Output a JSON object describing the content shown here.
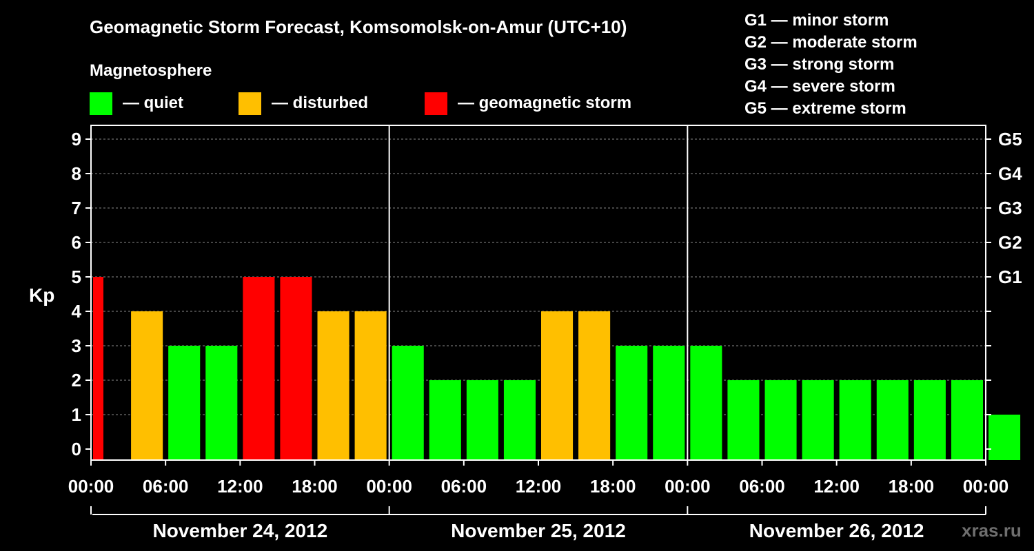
{
  "title": "Geomagnetic Storm Forecast, Komsomolsk-on-Amur (UTC+10)",
  "legend": {
    "heading": "Magnetosphere",
    "items": [
      {
        "label": "— quiet",
        "color": "#00ff00"
      },
      {
        "label": "— disturbed",
        "color": "#ffbf00"
      },
      {
        "label": "— geomagnetic storm",
        "color": "#ff0000"
      }
    ]
  },
  "storm_scale": [
    "G1 — minor storm",
    "G2 — moderate storm",
    "G3 — strong storm",
    "G4 — severe storm",
    "G5 — extreme storm"
  ],
  "watermark": "xras.ru",
  "chart_data": {
    "type": "bar",
    "ylabel": "Kp",
    "ylim": [
      0,
      9
    ],
    "y_ticks": [
      "0",
      "1",
      "2",
      "3",
      "4",
      "5",
      "6",
      "7",
      "8",
      "9"
    ],
    "right_ticks": [
      {
        "kp": 5,
        "label": "G1"
      },
      {
        "kp": 6,
        "label": "G2"
      },
      {
        "kp": 7,
        "label": "G3"
      },
      {
        "kp": 8,
        "label": "G4"
      },
      {
        "kp": 9,
        "label": "G5"
      }
    ],
    "x_ticks": [
      "00:00",
      "06:00",
      "12:00",
      "18:00",
      "00:00",
      "06:00",
      "12:00",
      "18:00",
      "00:00",
      "06:00",
      "12:00",
      "18:00",
      "00:00"
    ],
    "days": [
      "November 24, 2012",
      "November 25, 2012",
      "November 26, 2012"
    ],
    "interval_hours": 3,
    "first_bar_partial": true,
    "values": [
      5,
      4,
      3,
      3,
      5,
      5,
      4,
      4,
      3,
      2,
      2,
      2,
      4,
      4,
      3,
      3,
      3,
      2,
      2,
      2,
      2,
      2,
      2,
      2,
      1
    ],
    "colors": {
      "quiet": "#00ff00",
      "disturbed": "#ffbf00",
      "storm": "#ff0000"
    }
  }
}
